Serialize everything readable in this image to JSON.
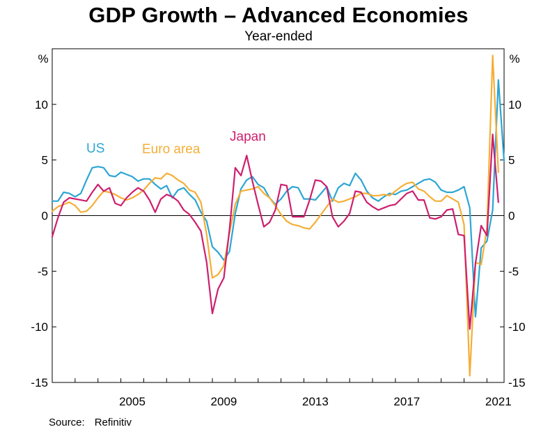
{
  "chart_data": {
    "type": "line",
    "title": "GDP Growth – Advanced Economies",
    "subtitle": "Year-ended",
    "ylabel_left": "%",
    "ylabel_right": "%",
    "ylim": [
      -15,
      15
    ],
    "yticks": [
      10,
      5,
      0,
      -5,
      -10,
      -15
    ],
    "xlim": [
      2002.0,
      2021.75
    ],
    "xticks": [
      2005,
      2009,
      2013,
      2017,
      2021
    ],
    "grid": false,
    "source_label": "Source:",
    "source": "Refinitiv",
    "colors": {
      "US": "#2ca6d3",
      "Euro area": "#f5ae36",
      "Japan": "#cd1f6e"
    },
    "series": [
      {
        "name": "US",
        "label_position": "above-left",
        "points": [
          [
            2002.0,
            1.3
          ],
          [
            2002.25,
            1.3
          ],
          [
            2002.5,
            2.1
          ],
          [
            2002.75,
            2.0
          ],
          [
            2003.0,
            1.7
          ],
          [
            2003.25,
            2.0
          ],
          [
            2003.5,
            3.2
          ],
          [
            2003.75,
            4.3
          ],
          [
            2004.0,
            4.4
          ],
          [
            2004.25,
            4.3
          ],
          [
            2004.5,
            3.6
          ],
          [
            2004.75,
            3.5
          ],
          [
            2005.0,
            3.9
          ],
          [
            2005.25,
            3.7
          ],
          [
            2005.5,
            3.5
          ],
          [
            2005.75,
            3.1
          ],
          [
            2006.0,
            3.3
          ],
          [
            2006.25,
            3.3
          ],
          [
            2006.5,
            2.8
          ],
          [
            2006.75,
            2.4
          ],
          [
            2007.0,
            2.7
          ],
          [
            2007.25,
            1.6
          ],
          [
            2007.5,
            2.3
          ],
          [
            2007.75,
            2.5
          ],
          [
            2008.0,
            1.9
          ],
          [
            2008.25,
            1.4
          ],
          [
            2008.5,
            0.3
          ],
          [
            2008.75,
            -0.5
          ],
          [
            2009.0,
            -2.8
          ],
          [
            2009.25,
            -3.3
          ],
          [
            2009.5,
            -4.0
          ],
          [
            2009.75,
            -3.2
          ],
          [
            2010.0,
            0.2
          ],
          [
            2010.25,
            2.4
          ],
          [
            2010.5,
            3.2
          ],
          [
            2010.75,
            3.5
          ],
          [
            2011.0,
            2.8
          ],
          [
            2011.25,
            2.5
          ],
          [
            2011.5,
            1.6
          ],
          [
            2011.75,
            1.0
          ],
          [
            2012.0,
            1.5
          ],
          [
            2012.25,
            2.2
          ],
          [
            2012.5,
            2.6
          ],
          [
            2012.75,
            2.5
          ],
          [
            2013.0,
            1.5
          ],
          [
            2013.25,
            1.5
          ],
          [
            2013.5,
            1.4
          ],
          [
            2013.75,
            2.0
          ],
          [
            2014.0,
            2.6
          ],
          [
            2014.25,
            1.3
          ],
          [
            2014.5,
            2.5
          ],
          [
            2014.75,
            2.9
          ],
          [
            2015.0,
            2.7
          ],
          [
            2015.25,
            3.8
          ],
          [
            2015.5,
            3.2
          ],
          [
            2015.75,
            2.2
          ],
          [
            2016.0,
            1.6
          ],
          [
            2016.25,
            1.3
          ],
          [
            2016.5,
            1.7
          ],
          [
            2016.75,
            2.0
          ],
          [
            2017.0,
            1.9
          ],
          [
            2017.25,
            2.2
          ],
          [
            2017.5,
            2.3
          ],
          [
            2017.75,
            2.6
          ],
          [
            2018.0,
            2.9
          ],
          [
            2018.25,
            3.2
          ],
          [
            2018.5,
            3.3
          ],
          [
            2018.75,
            3.0
          ],
          [
            2019.0,
            2.3
          ],
          [
            2019.25,
            2.1
          ],
          [
            2019.5,
            2.1
          ],
          [
            2019.75,
            2.3
          ],
          [
            2020.0,
            2.6
          ],
          [
            2020.25,
            0.7
          ],
          [
            2020.5,
            -9.1
          ],
          [
            2020.75,
            -2.9
          ],
          [
            2021.0,
            -2.3
          ],
          [
            2021.25,
            0.5
          ],
          [
            2021.5,
            12.2
          ],
          [
            2021.75,
            4.9
          ]
        ]
      },
      {
        "name": "Euro area",
        "label_position": "above",
        "points": [
          [
            2002.0,
            0.4
          ],
          [
            2002.25,
            0.8
          ],
          [
            2002.5,
            1.0
          ],
          [
            2002.75,
            1.2
          ],
          [
            2003.0,
            0.9
          ],
          [
            2003.25,
            0.3
          ],
          [
            2003.5,
            0.4
          ],
          [
            2003.75,
            0.9
          ],
          [
            2004.0,
            1.6
          ],
          [
            2004.25,
            2.2
          ],
          [
            2004.5,
            2.1
          ],
          [
            2004.75,
            1.9
          ],
          [
            2005.0,
            1.6
          ],
          [
            2005.25,
            1.4
          ],
          [
            2005.5,
            1.6
          ],
          [
            2005.75,
            1.9
          ],
          [
            2006.0,
            2.3
          ],
          [
            2006.25,
            2.9
          ],
          [
            2006.5,
            3.4
          ],
          [
            2006.75,
            3.3
          ],
          [
            2007.0,
            3.8
          ],
          [
            2007.25,
            3.6
          ],
          [
            2007.5,
            3.2
          ],
          [
            2007.75,
            2.9
          ],
          [
            2008.0,
            2.3
          ],
          [
            2008.25,
            2.1
          ],
          [
            2008.5,
            1.2
          ],
          [
            2008.75,
            -1.7
          ],
          [
            2009.0,
            -5.6
          ],
          [
            2009.25,
            -5.3
          ],
          [
            2009.5,
            -4.5
          ],
          [
            2009.75,
            -1.5
          ],
          [
            2010.0,
            1.0
          ],
          [
            2010.25,
            2.2
          ],
          [
            2010.5,
            2.3
          ],
          [
            2010.75,
            2.4
          ],
          [
            2011.0,
            2.6
          ],
          [
            2011.25,
            2.0
          ],
          [
            2011.5,
            1.6
          ],
          [
            2011.75,
            0.9
          ],
          [
            2012.0,
            0.1
          ],
          [
            2012.25,
            -0.5
          ],
          [
            2012.5,
            -0.8
          ],
          [
            2012.75,
            -0.9
          ],
          [
            2013.0,
            -1.1
          ],
          [
            2013.25,
            -1.2
          ],
          [
            2013.5,
            -0.6
          ],
          [
            2013.75,
            0.1
          ],
          [
            2014.0,
            0.8
          ],
          [
            2014.25,
            1.5
          ],
          [
            2014.5,
            1.2
          ],
          [
            2014.75,
            1.3
          ],
          [
            2015.0,
            1.5
          ],
          [
            2015.25,
            1.7
          ],
          [
            2015.5,
            2.0
          ],
          [
            2015.75,
            2.0
          ],
          [
            2016.0,
            1.8
          ],
          [
            2016.25,
            1.8
          ],
          [
            2016.5,
            1.9
          ],
          [
            2016.75,
            1.8
          ],
          [
            2017.0,
            2.2
          ],
          [
            2017.25,
            2.6
          ],
          [
            2017.5,
            2.9
          ],
          [
            2017.75,
            3.0
          ],
          [
            2018.0,
            2.4
          ],
          [
            2018.25,
            2.2
          ],
          [
            2018.5,
            1.7
          ],
          [
            2018.75,
            1.3
          ],
          [
            2019.0,
            1.3
          ],
          [
            2019.25,
            1.8
          ],
          [
            2019.5,
            1.5
          ],
          [
            2019.75,
            1.2
          ],
          [
            2020.0,
            -0.8
          ],
          [
            2020.25,
            -14.4
          ],
          [
            2020.5,
            -4.2
          ],
          [
            2020.75,
            -4.4
          ],
          [
            2021.0,
            -1.1
          ],
          [
            2021.25,
            14.4
          ],
          [
            2021.5,
            3.9
          ]
        ]
      },
      {
        "name": "Japan",
        "label_position": "above-right",
        "points": [
          [
            2002.0,
            -1.9
          ],
          [
            2002.25,
            -0.2
          ],
          [
            2002.5,
            1.2
          ],
          [
            2002.75,
            1.6
          ],
          [
            2003.0,
            1.5
          ],
          [
            2003.25,
            1.4
          ],
          [
            2003.5,
            1.3
          ],
          [
            2003.75,
            2.1
          ],
          [
            2004.0,
            2.8
          ],
          [
            2004.25,
            2.2
          ],
          [
            2004.5,
            2.5
          ],
          [
            2004.75,
            1.1
          ],
          [
            2005.0,
            0.9
          ],
          [
            2005.25,
            1.6
          ],
          [
            2005.5,
            2.1
          ],
          [
            2005.75,
            2.5
          ],
          [
            2006.0,
            2.2
          ],
          [
            2006.25,
            1.4
          ],
          [
            2006.5,
            0.3
          ],
          [
            2006.75,
            1.5
          ],
          [
            2007.0,
            1.9
          ],
          [
            2007.25,
            1.7
          ],
          [
            2007.5,
            1.3
          ],
          [
            2007.75,
            0.5
          ],
          [
            2008.0,
            0.1
          ],
          [
            2008.25,
            -0.6
          ],
          [
            2008.5,
            -1.4
          ],
          [
            2008.75,
            -4.2
          ],
          [
            2009.0,
            -8.8
          ],
          [
            2009.25,
            -6.6
          ],
          [
            2009.5,
            -5.6
          ],
          [
            2009.75,
            -1.2
          ],
          [
            2010.0,
            4.3
          ],
          [
            2010.25,
            3.6
          ],
          [
            2010.5,
            5.4
          ],
          [
            2010.75,
            3.1
          ],
          [
            2011.0,
            1.0
          ],
          [
            2011.25,
            -1.0
          ],
          [
            2011.5,
            -0.6
          ],
          [
            2011.75,
            0.5
          ],
          [
            2012.0,
            2.8
          ],
          [
            2012.25,
            2.7
          ],
          [
            2012.5,
            -0.1
          ],
          [
            2012.75,
            -0.1
          ],
          [
            2013.0,
            -0.1
          ],
          [
            2013.25,
            1.4
          ],
          [
            2013.5,
            3.2
          ],
          [
            2013.75,
            3.1
          ],
          [
            2014.0,
            2.6
          ],
          [
            2014.25,
            -0.1
          ],
          [
            2014.5,
            -1.0
          ],
          [
            2014.75,
            -0.5
          ],
          [
            2015.0,
            0.2
          ],
          [
            2015.25,
            2.2
          ],
          [
            2015.5,
            2.1
          ],
          [
            2015.75,
            1.2
          ],
          [
            2016.0,
            0.8
          ],
          [
            2016.25,
            0.5
          ],
          [
            2016.5,
            0.7
          ],
          [
            2016.75,
            0.9
          ],
          [
            2017.0,
            1.0
          ],
          [
            2017.25,
            1.5
          ],
          [
            2017.5,
            2.0
          ],
          [
            2017.75,
            2.2
          ],
          [
            2018.0,
            1.4
          ],
          [
            2018.25,
            1.4
          ],
          [
            2018.5,
            -0.2
          ],
          [
            2018.75,
            -0.3
          ],
          [
            2019.0,
            -0.1
          ],
          [
            2019.25,
            0.5
          ],
          [
            2019.5,
            0.6
          ],
          [
            2019.75,
            -1.7
          ],
          [
            2020.0,
            -1.8
          ],
          [
            2020.25,
            -10.2
          ],
          [
            2020.5,
            -4.3
          ],
          [
            2020.75,
            -0.9
          ],
          [
            2021.0,
            -1.8
          ],
          [
            2021.25,
            7.3
          ],
          [
            2021.5,
            1.2
          ]
        ]
      }
    ]
  }
}
